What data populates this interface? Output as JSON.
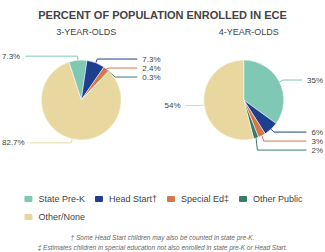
{
  "chart_data": {
    "type": "pie",
    "title": "PERCENT OF POPULATION ENROLLED IN ECE",
    "categories": [
      "State Pre-K",
      "Head Start†",
      "Special Ed‡",
      "Other Public",
      "Other/None"
    ],
    "colors": [
      "#7ec8b4",
      "#1e3f8f",
      "#d4784a",
      "#3a7a6a",
      "#e8d8a0"
    ],
    "series": [
      {
        "name": "3-YEAR-OLDS",
        "values": [
          7.3,
          7.3,
          2.4,
          0.3,
          82.7
        ],
        "value_labels": [
          "7.3%",
          "7.3%",
          "2.4%",
          "0.3%",
          "82.7%"
        ]
      },
      {
        "name": "4-YEAR-OLDS",
        "values": [
          35.0,
          6.0,
          3.0,
          2.0,
          54.0
        ],
        "value_labels": [
          "35%",
          "6%",
          "3%",
          "2%",
          "54%"
        ]
      }
    ],
    "data_labels": true,
    "legend": "bottom",
    "annotations": [
      "† Some Head Start children may also be counted in state pre-K.",
      "‡ Estimates children in special education not also enrolled in state pre-K or Head Start."
    ]
  }
}
